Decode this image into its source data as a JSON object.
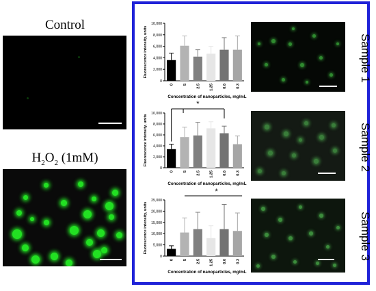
{
  "left_panel": {
    "control_label": "Control",
    "h2o2_label_main": "H",
    "h2o2_sub1": "2",
    "h2o2_mid": "O",
    "h2o2_sub2": "2",
    "h2o2_conc": " (1mM)"
  },
  "colors": {
    "frame_border": "#1f22d8",
    "cell_green": "#22e022",
    "background_dark": "#000000"
  },
  "samples": [
    {
      "label": "Sample 1"
    },
    {
      "label": "Sample 2"
    },
    {
      "label": "Sample 3"
    }
  ],
  "chart_data": [
    {
      "type": "bar",
      "ylabel": "Fluorescence intensity, units",
      "xlabel": "Concentration of nanoparticles, mg/mL",
      "categories": [
        "0",
        "5",
        "2.5",
        "1.25",
        "0.6",
        "0.3"
      ],
      "values": [
        3600,
        6100,
        4200,
        4700,
        5400,
        5400
      ],
      "errors": [
        1200,
        1700,
        1200,
        1300,
        2100,
        2400
      ],
      "bar_colors": [
        "#000000",
        "#b3b3b3",
        "#808080",
        "#e6e6e6",
        "#737373",
        "#a6a6a6"
      ],
      "yticks": [
        "0",
        "2,000",
        "4,000",
        "6,000",
        "8,000",
        "10,000"
      ],
      "ylim": [
        0,
        10000
      ],
      "significance": null
    },
    {
      "type": "bar",
      "ylabel": "Fluorescence intensity, units",
      "xlabel": "Concentration of nanoparticles, mg/mL",
      "categories": [
        "0",
        "5",
        "2.5",
        "1.25",
        "0.6",
        "0.3"
      ],
      "values": [
        3400,
        5600,
        5900,
        7200,
        6300,
        4300
      ],
      "errors": [
        900,
        1800,
        2400,
        1200,
        1300,
        1500
      ],
      "bar_colors": [
        "#000000",
        "#b3b3b3",
        "#808080",
        "#e6e6e6",
        "#737373",
        "#a6a6a6"
      ],
      "yticks": [
        "0",
        "2,000",
        "4,000",
        "6,000",
        "8,000",
        "10,000"
      ],
      "ylim": [
        0,
        10000
      ],
      "significance": {
        "label": "*",
        "from": 0,
        "to": 4
      }
    },
    {
      "type": "bar",
      "ylabel": "Fluorescence intensity, units",
      "xlabel": "Concentration of nanoparticles, mg/mL",
      "categories": [
        "0",
        "5",
        "2.5",
        "1.25",
        "0.6",
        "0.3"
      ],
      "values": [
        3200,
        10500,
        12000,
        8000,
        12000,
        11200
      ],
      "errors": [
        1400,
        6500,
        7500,
        5500,
        11000,
        8000
      ],
      "bar_colors": [
        "#000000",
        "#b3b3b3",
        "#808080",
        "#e6e6e6",
        "#737373",
        "#a6a6a6"
      ],
      "yticks": [
        "0",
        "5,000",
        "10,000",
        "15,000",
        "20,000",
        "25,000"
      ],
      "ylim": [
        0,
        25000
      ],
      "significance": {
        "label": "*",
        "from": 1,
        "to": 5
      }
    }
  ]
}
